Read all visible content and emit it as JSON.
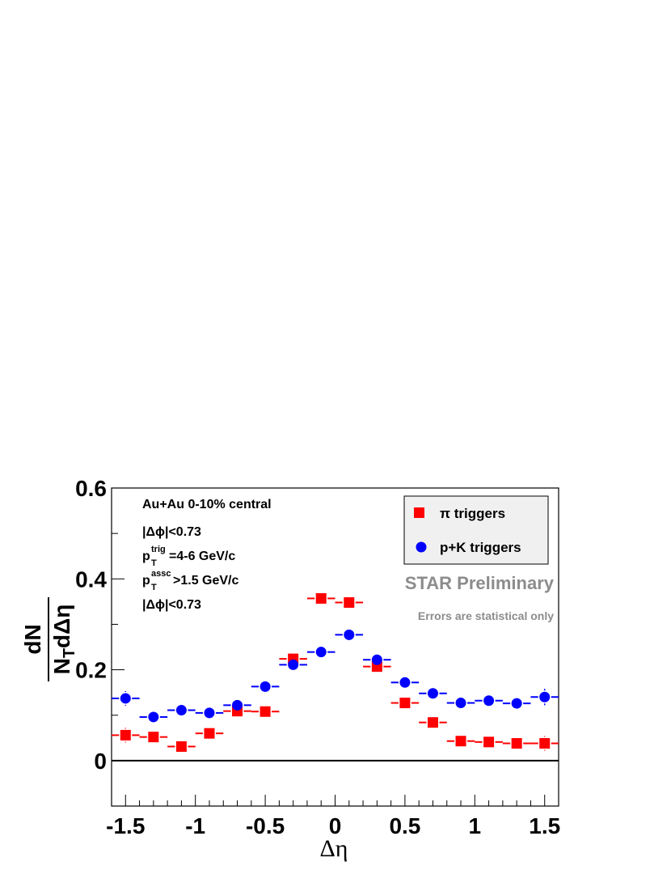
{
  "chart_data": {
    "type": "scatter",
    "xlabel": "Δη",
    "ylabel": {
      "numerator": "dN",
      "denominator_main": "N",
      "denominator_sub": "T",
      "denominator_tail": "dΔη"
    },
    "xlim": [
      -1.6,
      1.6
    ],
    "ylim": [
      -0.1,
      0.6
    ],
    "x_ticks": [
      -1.5,
      -1,
      -0.5,
      0,
      0.5,
      1,
      1.5
    ],
    "x_tick_labels": [
      "-1.5",
      "-1",
      "-0.5",
      "0",
      "0.5",
      "1",
      "1.5"
    ],
    "y_ticks": [
      0,
      0.2,
      0.4,
      0.6
    ],
    "y_tick_labels": [
      "0",
      "0.2",
      "0.4",
      "0.6"
    ],
    "bin_half_width": 0.1,
    "zero_line": true,
    "legend_placement": "top-right",
    "series": [
      {
        "name": "π triggers",
        "marker": "square",
        "color": "#ff0000",
        "x": [
          -1.5,
          -1.3,
          -1.1,
          -0.9,
          -0.7,
          -0.5,
          -0.3,
          -0.1,
          0.1,
          0.3,
          0.5,
          0.7,
          0.9,
          1.1,
          1.3,
          1.5
        ],
        "y": [
          0.056,
          0.052,
          0.031,
          0.06,
          0.109,
          0.108,
          0.224,
          0.357,
          0.348,
          0.207,
          0.127,
          0.084,
          0.043,
          0.041,
          0.038,
          0.038
        ],
        "yerr": [
          0.016,
          0.014,
          0.007,
          0.007,
          0.007,
          0.006,
          0.006,
          0.005,
          0.005,
          0.005,
          0.006,
          0.007,
          0.006,
          0.007,
          0.012,
          0.016
        ]
      },
      {
        "name": "p+K triggers",
        "marker": "circle",
        "color": "#0000ff",
        "x": [
          -1.5,
          -1.3,
          -1.1,
          -0.9,
          -0.7,
          -0.5,
          -0.3,
          -0.1,
          0.1,
          0.3,
          0.5,
          0.7,
          0.9,
          1.1,
          1.3,
          1.5
        ],
        "y": [
          0.137,
          0.096,
          0.111,
          0.105,
          0.122,
          0.163,
          0.211,
          0.239,
          0.277,
          0.222,
          0.172,
          0.148,
          0.127,
          0.132,
          0.126,
          0.14
        ],
        "yerr": [
          0.016,
          0.014,
          0.007,
          0.007,
          0.007,
          0.006,
          0.006,
          0.005,
          0.005,
          0.005,
          0.006,
          0.007,
          0.006,
          0.007,
          0.014,
          0.018
        ]
      }
    ],
    "annotations": {
      "system": "Au+Au 0-10% central",
      "dphi_cut_1": "|Δϕ|<0.73",
      "pt_trig": {
        "p": "p",
        "sup": "trig",
        "sub": "T",
        "text": "=4-6 GeV/c"
      },
      "pt_assc": {
        "p": "p",
        "sup": "assc",
        "sub": "T",
        "text": ">1.5 GeV/c"
      },
      "dphi_cut_2": "|Δϕ|<0.73",
      "watermark": "STAR Preliminary",
      "note": "Errors are statistical only"
    }
  }
}
